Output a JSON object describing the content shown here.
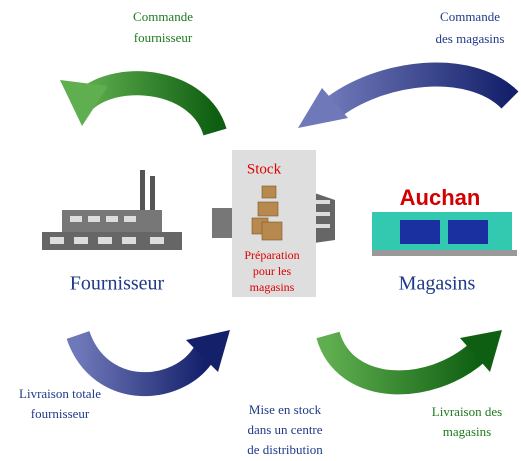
{
  "order_supplier": {
    "lines": [
      "Commande",
      "fournisseur"
    ]
  },
  "order_stores": {
    "lines": [
      "Commande",
      "des magasins"
    ]
  },
  "warehouse": {
    "stock": "Stock",
    "preparation": [
      "Préparation",
      "pour les",
      "magasins"
    ]
  },
  "supplier": {
    "label": "Fournisseur"
  },
  "stores": {
    "label": "Magasins",
    "logo": "Auchan"
  },
  "delivery_supplier": {
    "lines": [
      "Livraison totale",
      "fournisseur"
    ]
  },
  "storage": {
    "lines": [
      "Mise en stock",
      "dans un centre",
      "de distribution"
    ]
  },
  "delivery_stores": {
    "lines": [
      "Livraison des",
      "magasins"
    ]
  }
}
